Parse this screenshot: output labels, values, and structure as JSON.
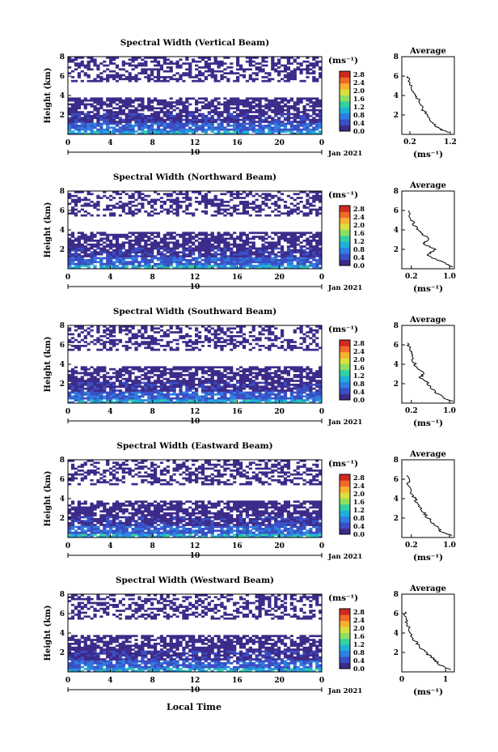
{
  "figure": {
    "footer_label": "Local Time",
    "colorbar_unit": "(ms⁻¹)",
    "date_label": "Jan 2021",
    "colorbar_ticks": [
      "2.8",
      "2.4",
      "2.0",
      "1.6",
      "1.2",
      "0.8",
      "0.4",
      "0.0"
    ],
    "colormap": [
      "#3d2b8a",
      "#3a4fc4",
      "#2f7fe0",
      "#1fb0d8",
      "#34d0a0",
      "#8ce060",
      "#d8e040",
      "#f8b030",
      "#f06a28",
      "#d02a20"
    ]
  },
  "chart_data": [
    {
      "type": "heatmap",
      "title": "Spectral Width (Vertical Beam)",
      "ylabel": "Height (km)",
      "x_ticks": [
        "0",
        "4",
        "8",
        "12",
        "16",
        "20",
        "0"
      ],
      "x_day_label": "10",
      "y_ticks": [
        "2",
        "4",
        "6",
        "8"
      ],
      "xlim": [
        0,
        24
      ],
      "ylim": [
        0,
        8
      ],
      "value_range": [
        0,
        2.8
      ],
      "layers": [
        {
          "from_km": 0.0,
          "to_km": 0.4,
          "value": 0.9
        },
        {
          "from_km": 0.4,
          "to_km": 1.2,
          "value": 0.5
        },
        {
          "from_km": 1.2,
          "to_km": 2.3,
          "value": 0.25
        },
        {
          "from_km": 2.3,
          "to_km": 3.8,
          "value": 0.2
        },
        {
          "from_km": 5.5,
          "to_km": 8.0,
          "value": 0.15
        }
      ],
      "profile": {
        "title": "Average",
        "xlabel": "(ms⁻¹)",
        "x_ticks": [
          "0.2",
          "1.2"
        ],
        "xlim": [
          0,
          1.3
        ],
        "ylim": [
          0,
          8
        ],
        "y_ticks": [
          "2",
          "4",
          "6",
          "8"
        ],
        "points": [
          [
            1.2,
            0.2
          ],
          [
            0.9,
            0.6
          ],
          [
            0.75,
            1.2
          ],
          [
            0.65,
            2.0
          ],
          [
            0.5,
            2.6
          ],
          [
            0.45,
            3.4
          ],
          [
            0.35,
            4.0
          ],
          [
            0.25,
            4.6
          ],
          [
            0.2,
            5.2
          ],
          [
            0.15,
            6.0
          ]
        ]
      }
    },
    {
      "type": "heatmap",
      "title": "Spectral Width (Northward Beam)",
      "ylabel": "Height (km)",
      "x_ticks": [
        "0",
        "4",
        "8",
        "12",
        "16",
        "20",
        "0"
      ],
      "x_day_label": "10",
      "y_ticks": [
        "2",
        "4",
        "6",
        "8"
      ],
      "xlim": [
        0,
        24
      ],
      "ylim": [
        0,
        8
      ],
      "value_range": [
        0,
        2.8
      ],
      "layers": [
        {
          "from_km": 0.0,
          "to_km": 0.4,
          "value": 0.9
        },
        {
          "from_km": 0.4,
          "to_km": 1.2,
          "value": 0.5
        },
        {
          "from_km": 1.2,
          "to_km": 2.3,
          "value": 0.25
        },
        {
          "from_km": 2.3,
          "to_km": 3.8,
          "value": 0.2
        },
        {
          "from_km": 5.5,
          "to_km": 8.0,
          "value": 0.15
        }
      ],
      "profile": {
        "title": "Average",
        "xlabel": "(ms⁻¹)",
        "x_ticks": [
          "0.2",
          "1.0"
        ],
        "xlim": [
          0,
          1.1
        ],
        "ylim": [
          0,
          8
        ],
        "y_ticks": [
          "2",
          "4",
          "6",
          "8"
        ],
        "points": [
          [
            1.05,
            0.2
          ],
          [
            0.8,
            0.8
          ],
          [
            0.55,
            1.4
          ],
          [
            0.7,
            2.0
          ],
          [
            0.45,
            2.6
          ],
          [
            0.6,
            3.0
          ],
          [
            0.4,
            3.6
          ],
          [
            0.3,
            4.2
          ],
          [
            0.2,
            5.0
          ],
          [
            0.15,
            6.0
          ]
        ]
      }
    },
    {
      "type": "heatmap",
      "title": "Spectral Width (Southward Beam)",
      "ylabel": "Height (km)",
      "x_ticks": [
        "0",
        "4",
        "8",
        "12",
        "16",
        "20",
        "0"
      ],
      "x_day_label": "10",
      "y_ticks": [
        "2",
        "4",
        "6",
        "8"
      ],
      "xlim": [
        0,
        24
      ],
      "ylim": [
        0,
        8
      ],
      "value_range": [
        0,
        2.8
      ],
      "layers": [
        {
          "from_km": 0.0,
          "to_km": 0.4,
          "value": 0.9
        },
        {
          "from_km": 0.4,
          "to_km": 1.2,
          "value": 0.5
        },
        {
          "from_km": 1.2,
          "to_km": 2.3,
          "value": 0.25
        },
        {
          "from_km": 2.3,
          "to_km": 3.8,
          "value": 0.2
        },
        {
          "from_km": 5.5,
          "to_km": 8.0,
          "value": 0.15
        }
      ],
      "profile": {
        "title": "Average",
        "xlabel": "(ms⁻¹)",
        "x_ticks": [
          "0.2",
          "1.0"
        ],
        "xlim": [
          0,
          1.1
        ],
        "ylim": [
          0,
          8
        ],
        "y_ticks": [
          "2",
          "4",
          "6",
          "8"
        ],
        "points": [
          [
            1.05,
            0.2
          ],
          [
            0.85,
            0.6
          ],
          [
            0.7,
            1.2
          ],
          [
            0.55,
            2.0
          ],
          [
            0.4,
            2.6
          ],
          [
            0.45,
            3.2
          ],
          [
            0.3,
            3.8
          ],
          [
            0.22,
            4.6
          ],
          [
            0.18,
            5.4
          ],
          [
            0.12,
            6.2
          ]
        ]
      }
    },
    {
      "type": "heatmap",
      "title": "Spectral Width (Eastward Beam)",
      "ylabel": "Height (km)",
      "x_ticks": [
        "0",
        "4",
        "8",
        "12",
        "16",
        "20",
        "0"
      ],
      "x_day_label": "10",
      "y_ticks": [
        "2",
        "4",
        "6",
        "8"
      ],
      "xlim": [
        0,
        24
      ],
      "ylim": [
        0,
        8
      ],
      "value_range": [
        0,
        2.8
      ],
      "layers": [
        {
          "from_km": 0.0,
          "to_km": 0.4,
          "value": 0.9
        },
        {
          "from_km": 0.4,
          "to_km": 1.2,
          "value": 0.5
        },
        {
          "from_km": 1.2,
          "to_km": 2.3,
          "value": 0.25
        },
        {
          "from_km": 2.3,
          "to_km": 3.8,
          "value": 0.2
        },
        {
          "from_km": 5.5,
          "to_km": 8.0,
          "value": 0.15
        }
      ],
      "profile": {
        "title": "Average",
        "xlabel": "(ms⁻¹)",
        "x_ticks": [
          "0.2",
          "1.0"
        ],
        "xlim": [
          0,
          1.1
        ],
        "ylim": [
          0,
          8
        ],
        "y_ticks": [
          "2",
          "4",
          "6",
          "8"
        ],
        "points": [
          [
            1.05,
            0.2
          ],
          [
            0.8,
            0.7
          ],
          [
            0.7,
            1.3
          ],
          [
            0.55,
            2.0
          ],
          [
            0.45,
            2.6
          ],
          [
            0.35,
            3.2
          ],
          [
            0.3,
            3.8
          ],
          [
            0.22,
            4.4
          ],
          [
            0.15,
            5.4
          ],
          [
            0.1,
            6.4
          ]
        ]
      }
    },
    {
      "type": "heatmap",
      "title": "Spectral Width (Westward Beam)",
      "ylabel": "Height (km)",
      "x_ticks": [
        "0",
        "4",
        "8",
        "12",
        "16",
        "20",
        "0"
      ],
      "x_day_label": "10",
      "y_ticks": [
        "2",
        "4",
        "6",
        "8"
      ],
      "xlim": [
        0,
        24
      ],
      "ylim": [
        0,
        8
      ],
      "value_range": [
        0,
        2.8
      ],
      "layers": [
        {
          "from_km": 0.0,
          "to_km": 0.4,
          "value": 0.9
        },
        {
          "from_km": 0.4,
          "to_km": 1.2,
          "value": 0.5
        },
        {
          "from_km": 1.2,
          "to_km": 2.3,
          "value": 0.25
        },
        {
          "from_km": 2.3,
          "to_km": 3.8,
          "value": 0.2
        },
        {
          "from_km": 5.5,
          "to_km": 8.0,
          "value": 0.15
        }
      ],
      "profile": {
        "title": "Average",
        "xlabel": "(ms⁻¹)",
        "x_ticks": [
          "0",
          "1"
        ],
        "xlim": [
          0,
          1.2
        ],
        "ylim": [
          0,
          8
        ],
        "y_ticks": [
          "2",
          "4",
          "6",
          "8"
        ],
        "points": [
          [
            1.1,
            0.2
          ],
          [
            0.85,
            0.8
          ],
          [
            0.7,
            1.4
          ],
          [
            0.55,
            2.0
          ],
          [
            0.4,
            2.6
          ],
          [
            0.3,
            3.2
          ],
          [
            0.2,
            3.8
          ],
          [
            0.15,
            4.6
          ],
          [
            0.1,
            5.4
          ],
          [
            0.08,
            6.2
          ]
        ]
      }
    }
  ]
}
